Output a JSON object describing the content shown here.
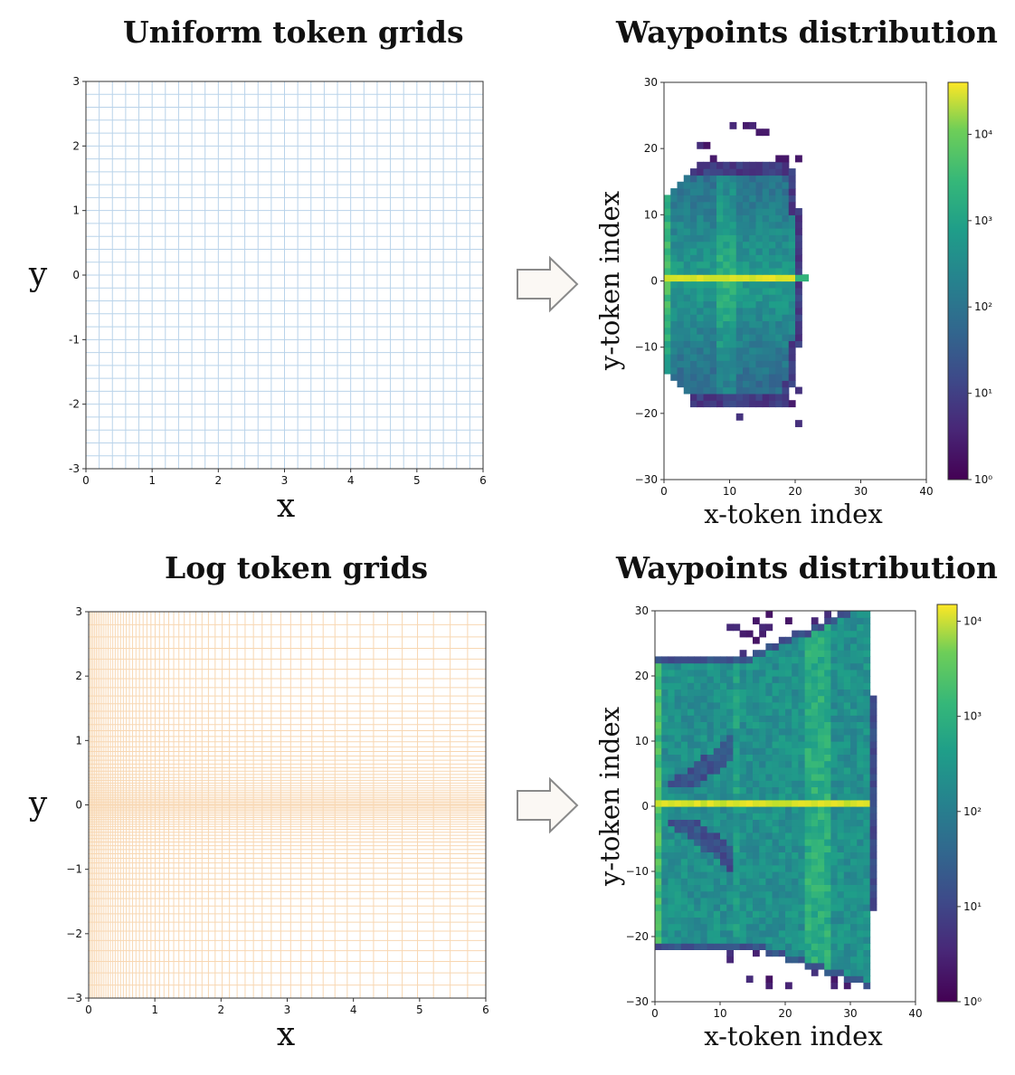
{
  "titles": {
    "top_left": "Uniform token grids",
    "top_right": "Waypoints distribution",
    "bottom_left": "Log token grids",
    "bottom_right": "Waypoints distribution"
  },
  "colors": {
    "uniform_grid": "#b9d3ea",
    "log_grid": "#f8d7b2",
    "arrow_fill": "#fbf8f4",
    "arrow_stroke": "#8a8a8a"
  },
  "chart_data": [
    {
      "type": "grid",
      "title": "Uniform token grids",
      "xlabel": "x",
      "ylabel": "y",
      "xlim": [
        0,
        6
      ],
      "ylim": [
        -3,
        3
      ],
      "xticks": [
        "0",
        "1",
        "2",
        "3",
        "4",
        "5",
        "6"
      ],
      "yticks": [
        "-3",
        "-2",
        "-1",
        "0",
        "1",
        "2",
        "3"
      ],
      "x_lines": 30,
      "y_lines": 30,
      "spacing": "uniform"
    },
    {
      "type": "heatmap",
      "title": "Waypoints distribution",
      "xlabel": "x-token index",
      "ylabel": "y-token index",
      "xlim": [
        0,
        40
      ],
      "ylim": [
        -30,
        30
      ],
      "xticks": [
        "0",
        "10",
        "20",
        "30",
        "40"
      ],
      "yticks": [
        "−30",
        "−20",
        "−10",
        "0",
        "10",
        "20",
        "30"
      ],
      "colorbar_scale": "log",
      "colorbar_range": [
        1,
        40000
      ],
      "colorbar_ticks": [
        "10⁰",
        "10¹",
        "10²",
        "10³",
        "10⁴"
      ],
      "colormap": "viridis",
      "x_extent": [
        0,
        21
      ],
      "y_extent": [
        -23,
        25
      ],
      "peak_row": 0
    },
    {
      "type": "grid",
      "title": "Log token grids",
      "xlabel": "x",
      "ylabel": "y",
      "xlim": [
        0,
        6
      ],
      "ylim": [
        -3,
        3
      ],
      "xticks": [
        "0",
        "1",
        "2",
        "3",
        "4",
        "5",
        "6"
      ],
      "yticks": [
        "−3",
        "−2",
        "−1",
        "0",
        "1",
        "2",
        "3"
      ],
      "spacing": "logarithmic"
    },
    {
      "type": "heatmap",
      "title": "Waypoints distribution",
      "xlabel": "x-token index",
      "ylabel": "y-token index",
      "xlim": [
        0,
        40
      ],
      "ylim": [
        -30,
        30
      ],
      "xticks": [
        "0",
        "10",
        "20",
        "30",
        "40"
      ],
      "yticks": [
        "−30",
        "−20",
        "−10",
        "0",
        "10",
        "20",
        "30"
      ],
      "colorbar_scale": "log",
      "colorbar_range": [
        1,
        15000
      ],
      "colorbar_ticks": [
        "10⁰",
        "10¹",
        "10²",
        "10³",
        "10⁴"
      ],
      "colormap": "viridis",
      "x_extent": [
        0,
        33
      ],
      "y_extent": [
        -29,
        30
      ],
      "peak_row": 0
    }
  ]
}
